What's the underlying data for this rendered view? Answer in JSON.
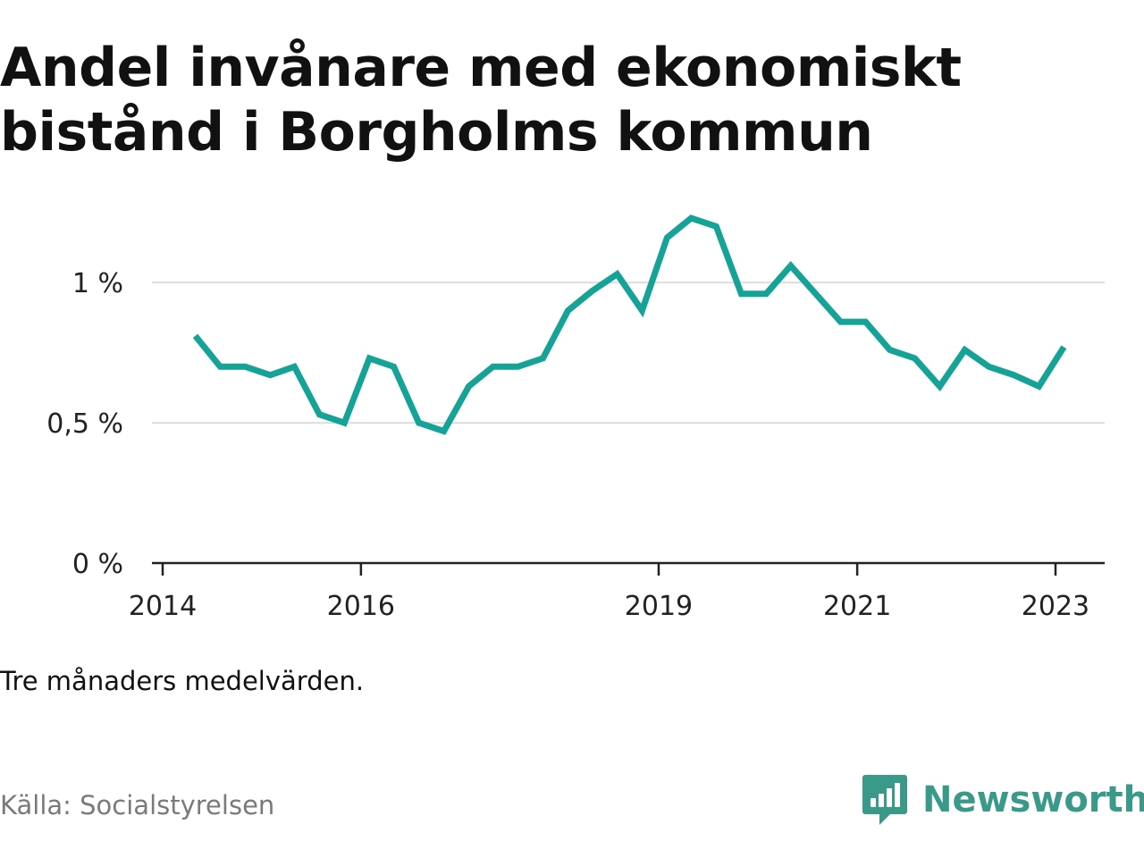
{
  "title_lines": [
    "Andel invånare med ekonomiskt",
    "bistånd i Borgholms kommun"
  ],
  "note": "Tre månaders medelvärden.",
  "source": "Källa: Socialstyrelsen",
  "brand": {
    "name": "Newsworthy",
    "color": "#3a9a8a",
    "icon": "bar-chart-icon"
  },
  "colors": {
    "line": "#16a397",
    "grid": "#dddddd",
    "axis": "#222222"
  },
  "chart_data": {
    "type": "line",
    "title": "Andel invånare med ekonomiskt bistånd i Borgholms kommun",
    "xlabel": "",
    "ylabel": "",
    "xlim": [
      "2014-01-01",
      "2023-07-01"
    ],
    "ylim": [
      0,
      1.3
    ],
    "grid": "horizontal",
    "x_ticks": [
      {
        "date": "2014-01-01",
        "label": "2014"
      },
      {
        "date": "2016-01-01",
        "label": "2016"
      },
      {
        "date": "2019-01-01",
        "label": "2019"
      },
      {
        "date": "2021-01-01",
        "label": "2021"
      },
      {
        "date": "2023-01-01",
        "label": "2023"
      }
    ],
    "y_ticks": [
      {
        "value": 0,
        "label": "0 %"
      },
      {
        "value": 0.5,
        "label": "0,5 %"
      },
      {
        "value": 1,
        "label": "1 %"
      }
    ],
    "series": [
      {
        "x": [
          "2014-05-01",
          "2014-08-01",
          "2014-11-01",
          "2015-02-01",
          "2015-05-01",
          "2015-08-01",
          "2015-11-01",
          "2016-02-01",
          "2016-05-01",
          "2016-08-01",
          "2016-11-01",
          "2017-02-01",
          "2017-05-01",
          "2017-08-01",
          "2017-11-01",
          "2018-02-01",
          "2018-05-01",
          "2018-08-01",
          "2018-11-01",
          "2019-02-01",
          "2019-05-01",
          "2019-08-01",
          "2019-11-01",
          "2020-02-01",
          "2020-05-01",
          "2020-08-01",
          "2020-11-01",
          "2021-02-01",
          "2021-05-01",
          "2021-08-01",
          "2021-11-01",
          "2022-02-01",
          "2022-05-01",
          "2022-08-01",
          "2022-11-01",
          "2023-02-01"
        ],
        "values": [
          0.81,
          0.7,
          0.7,
          0.67,
          0.7,
          0.53,
          0.5,
          0.73,
          0.7,
          0.5,
          0.47,
          0.63,
          0.7,
          0.7,
          0.73,
          0.9,
          0.97,
          1.03,
          0.9,
          1.16,
          1.23,
          1.2,
          0.96,
          0.96,
          1.06,
          0.96,
          0.86,
          0.86,
          0.76,
          0.73,
          0.63,
          0.76,
          0.7,
          0.67,
          0.63,
          0.77
        ]
      }
    ]
  }
}
